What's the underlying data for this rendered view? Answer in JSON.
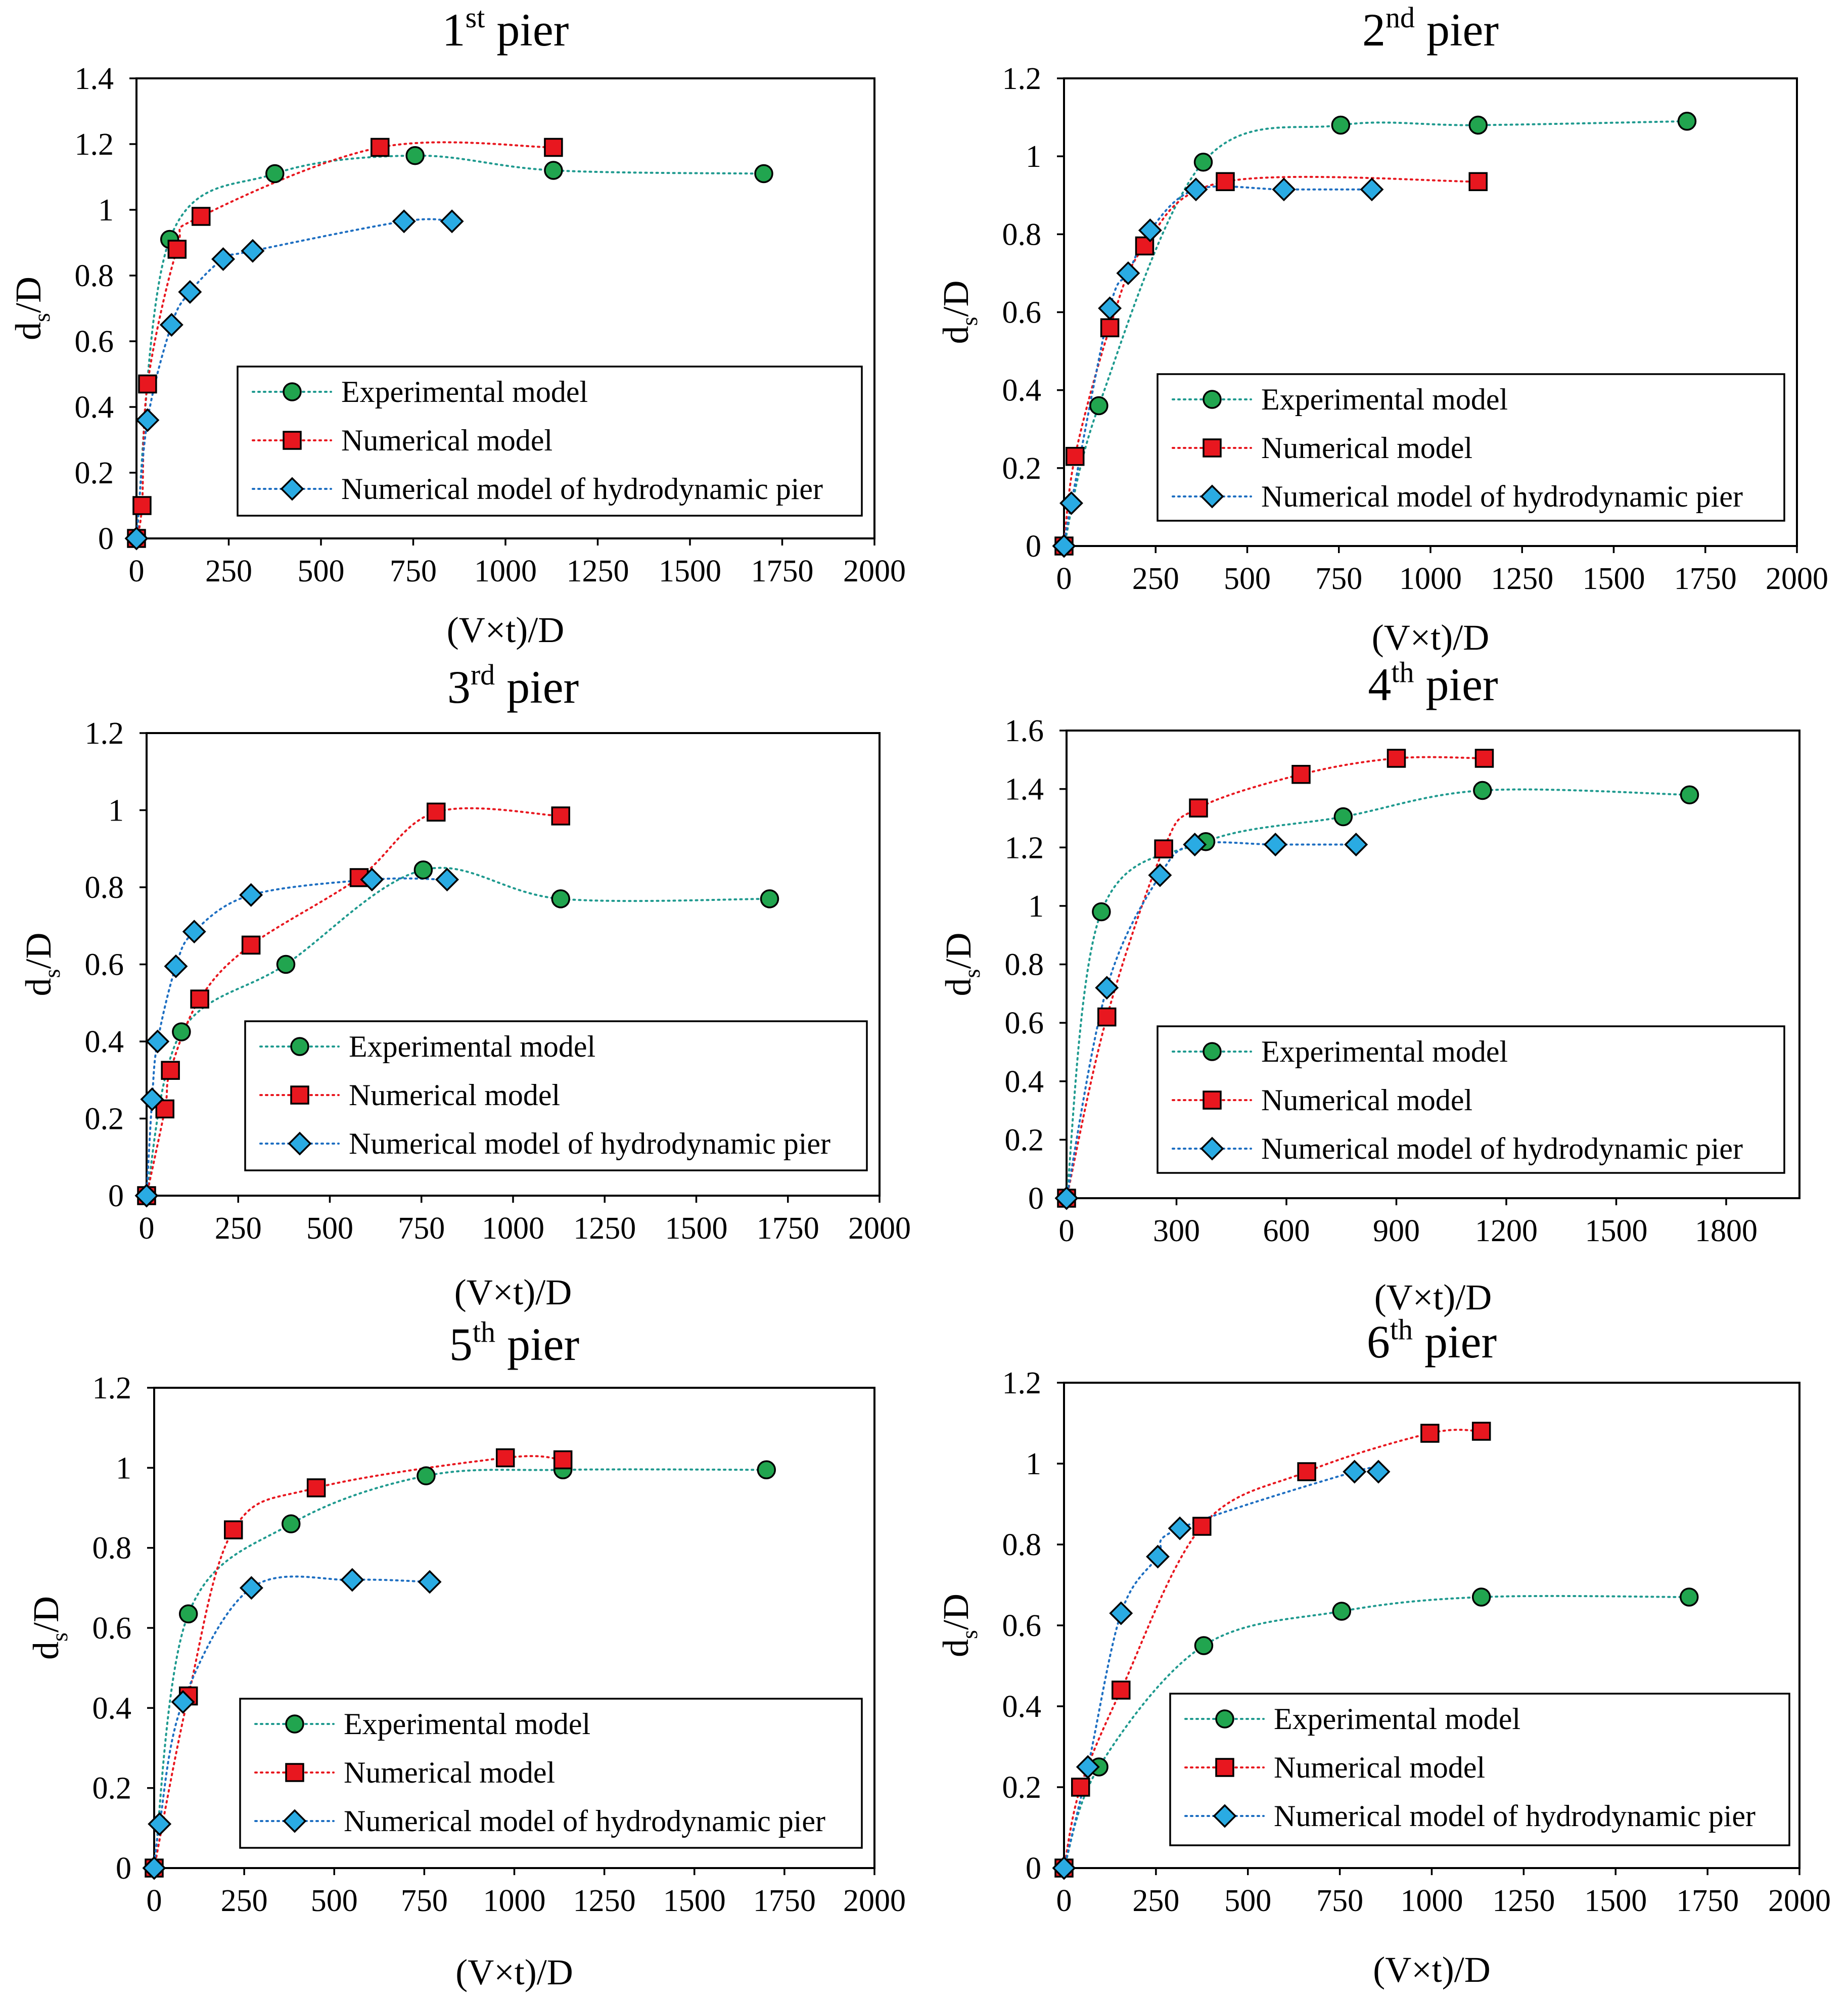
{
  "figure": {
    "legend_labels": [
      "Experimental model",
      "Numerical model",
      "Numerical model of hydrodynamic pier"
    ],
    "colors": {
      "experimental": "#21a54f",
      "numerical": "#e8171f",
      "hydrodynamic": "#2aabe3",
      "experimental_line": "#1f9a8f",
      "numerical_line": "#e8171f",
      "hydrodynamic_line": "#1e6fc2",
      "frame": "#000000"
    }
  },
  "chart_data": [
    {
      "type": "scatter",
      "title_main": "1",
      "title_sup": "st",
      "title_rest": " pier",
      "xlabel": "(V×t)/D",
      "ylabel": "d",
      "ylabel_sub": "s",
      "ylabel_rest": "/D",
      "xlim": [
        0,
        2000
      ],
      "ylim": [
        0,
        1.4
      ],
      "xticks": [
        0,
        250,
        500,
        750,
        1000,
        1250,
        1500,
        1750,
        2000
      ],
      "yticks": [
        0,
        0.2,
        0.4,
        0.6,
        0.8,
        1,
        1.2,
        1.4
      ],
      "legend": [
        "Experimental model",
        "Numerical model",
        "Numerical model of hydrodynamic pier"
      ],
      "series": [
        {
          "name": "Experimental model",
          "marker": "circle",
          "x": [
            0,
            90,
            375,
            755,
            1130,
            1700
          ],
          "y": [
            0,
            0.91,
            1.11,
            1.165,
            1.12,
            1.11
          ]
        },
        {
          "name": "Numerical model",
          "marker": "square",
          "x": [
            0,
            15,
            30,
            110,
            175,
            660,
            1130
          ],
          "y": [
            0,
            0.1,
            0.47,
            0.88,
            0.98,
            1.19,
            1.19
          ]
        },
        {
          "name": "Numerical model of hydrodynamic pier",
          "marker": "diamond",
          "x": [
            0,
            30,
            95,
            145,
            235,
            315,
            725,
            855
          ],
          "y": [
            0,
            0.36,
            0.65,
            0.75,
            0.85,
            0.875,
            0.965,
            0.965
          ]
        }
      ]
    },
    {
      "type": "scatter",
      "title_main": "2",
      "title_sup": "nd",
      "title_rest": " pier",
      "xlabel": "(V×t)/D",
      "ylabel": "d",
      "ylabel_sub": "s",
      "ylabel_rest": "/D",
      "xlim": [
        0,
        2000
      ],
      "ylim": [
        0,
        1.2
      ],
      "xticks": [
        0,
        250,
        500,
        750,
        1000,
        1250,
        1500,
        1750,
        2000
      ],
      "yticks": [
        0,
        0.2,
        0.4,
        0.6,
        0.8,
        1,
        1.2
      ],
      "legend": [
        "Experimental model",
        "Numerical model",
        "Numerical model of hydrodynamic pier"
      ],
      "series": [
        {
          "name": "Experimental model",
          "marker": "circle",
          "x": [
            0,
            95,
            380,
            755,
            1130,
            1700
          ],
          "y": [
            0,
            0.36,
            0.985,
            1.08,
            1.08,
            1.09
          ]
        },
        {
          "name": "Numerical model",
          "marker": "square",
          "x": [
            0,
            30,
            125,
            220,
            440,
            1130
          ],
          "y": [
            0,
            0.23,
            0.56,
            0.77,
            0.935,
            0.935
          ]
        },
        {
          "name": "Numerical model of hydrodynamic pier",
          "marker": "diamond",
          "x": [
            0,
            20,
            125,
            175,
            235,
            360,
            600,
            840
          ],
          "y": [
            0,
            0.11,
            0.61,
            0.7,
            0.81,
            0.915,
            0.915,
            0.915
          ]
        }
      ]
    },
    {
      "type": "scatter",
      "title_main": "3",
      "title_sup": "rd",
      "title_rest": " pier",
      "xlabel": "(V×t)/D",
      "ylabel": "d",
      "ylabel_sub": "s",
      "ylabel_rest": "/D",
      "xlim": [
        0,
        2000
      ],
      "ylim": [
        0,
        1.2
      ],
      "xticks": [
        0,
        250,
        500,
        750,
        1000,
        1250,
        1500,
        1750,
        2000
      ],
      "yticks": [
        0,
        0.2,
        0.4,
        0.6,
        0.8,
        1,
        1.2
      ],
      "legend": [
        "Experimental model",
        "Numerical model",
        "Numerical model of hydrodynamic pier"
      ],
      "series": [
        {
          "name": "Experimental model",
          "marker": "circle",
          "x": [
            0,
            95,
            380,
            755,
            1130,
            1700
          ],
          "y": [
            0,
            0.425,
            0.6,
            0.845,
            0.77,
            0.77
          ]
        },
        {
          "name": "Numerical model",
          "marker": "square",
          "x": [
            0,
            50,
            65,
            145,
            285,
            580,
            790,
            1130
          ],
          "y": [
            0,
            0.225,
            0.325,
            0.51,
            0.65,
            0.825,
            0.995,
            0.985
          ]
        },
        {
          "name": "Numerical model of hydrodynamic pier",
          "marker": "diamond",
          "x": [
            0,
            15,
            30,
            80,
            130,
            285,
            615,
            820
          ],
          "y": [
            0,
            0.25,
            0.4,
            0.595,
            0.685,
            0.78,
            0.82,
            0.82
          ]
        }
      ]
    },
    {
      "type": "scatter",
      "title_main": "4",
      "title_sup": "th",
      "title_rest": " pier",
      "xlabel": "(V×t)/D",
      "ylabel": "d",
      "ylabel_sub": "s",
      "ylabel_rest": "/D",
      "xlim": [
        0,
        2000
      ],
      "ylim": [
        0,
        1.6
      ],
      "xticks": [
        0,
        300,
        600,
        900,
        1200,
        1500,
        1800
      ],
      "yticks": [
        0,
        0.2,
        0.4,
        0.6,
        0.8,
        1,
        1.2,
        1.4,
        1.6
      ],
      "legend": [
        "Experimental model",
        "Numerical model",
        "Numerical model of hydrodynamic pier"
      ],
      "series": [
        {
          "name": "Experimental model",
          "marker": "circle",
          "x": [
            0,
            95,
            380,
            755,
            1135,
            1700
          ],
          "y": [
            0,
            0.98,
            1.22,
            1.305,
            1.395,
            1.38
          ]
        },
        {
          "name": "Numerical model",
          "marker": "square",
          "x": [
            0,
            110,
            265,
            360,
            640,
            900,
            1140
          ],
          "y": [
            0,
            0.62,
            1.195,
            1.335,
            1.45,
            1.505,
            1.505
          ]
        },
        {
          "name": "Numerical model of hydrodynamic pier",
          "marker": "diamond",
          "x": [
            0,
            110,
            255,
            350,
            570,
            790
          ],
          "y": [
            0,
            0.72,
            1.105,
            1.21,
            1.21,
            1.21
          ]
        }
      ]
    },
    {
      "type": "scatter",
      "title_main": "5",
      "title_sup": "th",
      "title_rest": " pier",
      "xlabel": "(V×t)/D",
      "ylabel": "d",
      "ylabel_sub": "s",
      "ylabel_rest": "/D",
      "xlim": [
        0,
        2000
      ],
      "ylim": [
        0,
        1.2
      ],
      "xticks": [
        0,
        250,
        500,
        750,
        1000,
        1250,
        1500,
        1750,
        2000
      ],
      "yticks": [
        0,
        0.2,
        0.4,
        0.6,
        0.8,
        1,
        1.2
      ],
      "legend": [
        "Experimental model",
        "Numerical model",
        "Numerical model of hydrodynamic pier"
      ],
      "series": [
        {
          "name": "Experimental model",
          "marker": "circle",
          "x": [
            0,
            95,
            380,
            755,
            1135,
            1700
          ],
          "y": [
            0,
            0.635,
            0.86,
            0.98,
            0.995,
            0.995
          ]
        },
        {
          "name": "Numerical model",
          "marker": "square",
          "x": [
            0,
            95,
            220,
            450,
            975,
            1135
          ],
          "y": [
            0,
            0.43,
            0.845,
            0.95,
            1.025,
            1.02
          ]
        },
        {
          "name": "Numerical model of hydrodynamic pier",
          "marker": "diamond",
          "x": [
            0,
            15,
            80,
            270,
            550,
            765
          ],
          "y": [
            0,
            0.11,
            0.415,
            0.7,
            0.72,
            0.715
          ]
        }
      ]
    },
    {
      "type": "scatter",
      "title_main": "6",
      "title_sup": "th",
      "title_rest": " pier",
      "xlabel": "(V×t)/D",
      "ylabel": "d",
      "ylabel_sub": "s",
      "ylabel_rest": "/D",
      "xlim": [
        0,
        2000
      ],
      "ylim": [
        0,
        1.2
      ],
      "xticks": [
        0,
        250,
        500,
        750,
        1000,
        1250,
        1500,
        1750,
        2000
      ],
      "yticks": [
        0,
        0.2,
        0.4,
        0.6,
        0.8,
        1,
        1.2
      ],
      "legend": [
        "Experimental model",
        "Numerical model",
        "Numerical model of hydrodynamic pier"
      ],
      "series": [
        {
          "name": "Experimental model",
          "marker": "circle",
          "x": [
            0,
            95,
            380,
            755,
            1135,
            1700
          ],
          "y": [
            0,
            0.25,
            0.55,
            0.635,
            0.67,
            0.67
          ]
        },
        {
          "name": "Numerical model",
          "marker": "square",
          "x": [
            0,
            45,
            155,
            375,
            660,
            995,
            1135
          ],
          "y": [
            0,
            0.2,
            0.44,
            0.845,
            0.98,
            1.075,
            1.08
          ]
        },
        {
          "name": "Numerical model of hydrodynamic pier",
          "marker": "diamond",
          "x": [
            0,
            65,
            155,
            255,
            315,
            790,
            855
          ],
          "y": [
            0,
            0.25,
            0.63,
            0.77,
            0.84,
            0.98,
            0.98
          ]
        }
      ]
    }
  ]
}
